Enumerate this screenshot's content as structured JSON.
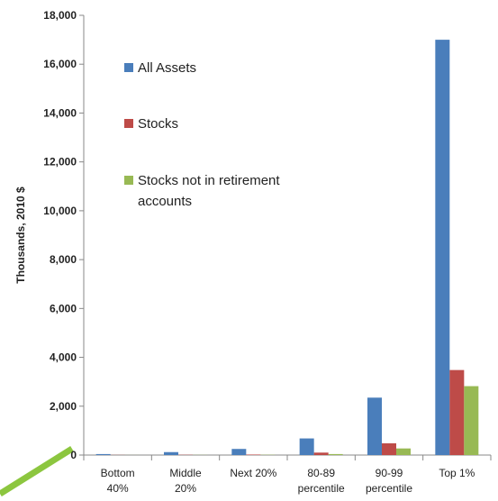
{
  "chart_data": {
    "type": "bar",
    "y_label": "Thousands, 2010 $",
    "categories": [
      "Bottom\n40%",
      "Middle\n20%",
      "Next 20%",
      "80-89\npercentile",
      "90-99\npercentile",
      "Top 1%"
    ],
    "series": [
      {
        "name": "All Assets",
        "color": "#4a7ebb",
        "values": [
          40,
          120,
          250,
          680,
          2350,
          17000
        ]
      },
      {
        "name": "Stocks",
        "color": "#be4b48",
        "values": [
          5,
          10,
          20,
          100,
          480,
          3480
        ]
      },
      {
        "name": "Stocks not in  retirement\naccounts",
        "color": "#98b954",
        "values": [
          2,
          5,
          10,
          40,
          270,
          2820
        ]
      }
    ],
    "ylim": [
      0,
      18000
    ],
    "yticks": [
      0,
      {
        "value": 2000,
        "label": "2,000"
      },
      {
        "value": 4000,
        "label": "4,000"
      },
      {
        "value": 6000,
        "label": "6,000"
      },
      {
        "value": 8000,
        "label": "8,000"
      },
      {
        "value": 10000,
        "label": "10,000"
      },
      {
        "value": 12000,
        "label": "12,000"
      },
      {
        "value": 14000,
        "label": "14,000"
      },
      {
        "value": 16000,
        "label": "16,000"
      },
      {
        "value": 18000,
        "label": "18,000"
      }
    ],
    "legend": "upper-left"
  }
}
